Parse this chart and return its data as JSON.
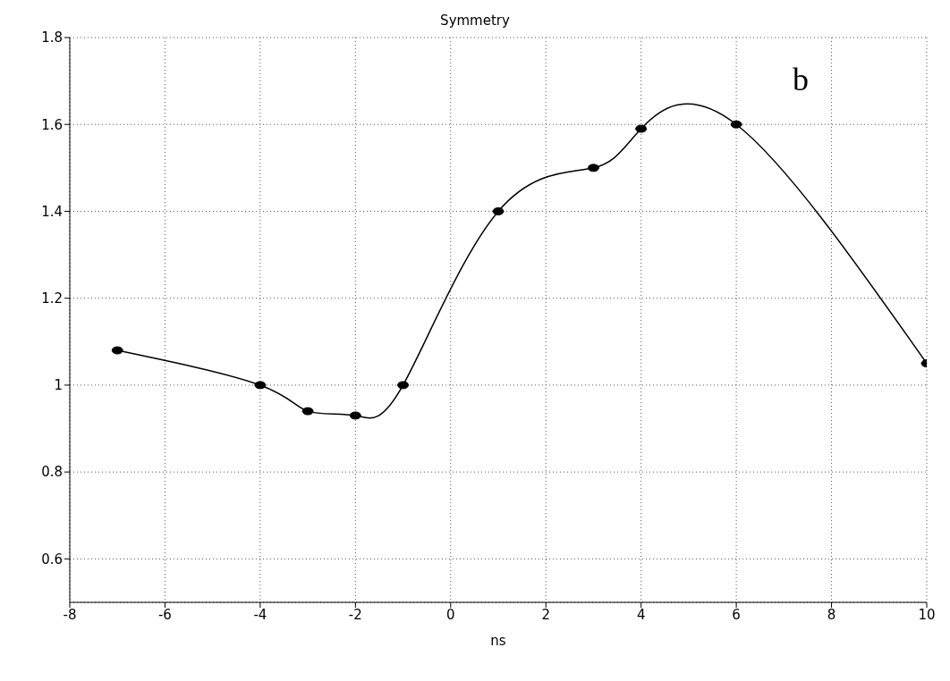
{
  "chart_data": {
    "type": "line",
    "title": "Symmetry",
    "xlabel": "ns",
    "annotations": [
      "b"
    ],
    "x": [
      -7,
      -4,
      -3,
      -2,
      -1,
      1,
      3,
      4,
      6,
      10
    ],
    "series": [
      {
        "color": "#000000",
        "values": [
          1.08,
          1.0,
          0.94,
          0.93,
          1.0,
          1.4,
          1.5,
          1.59,
          1.6,
          1.05
        ]
      }
    ],
    "xlim": [
      -8,
      10
    ],
    "xticks": [
      -8,
      -6,
      -4,
      -2,
      0,
      2,
      4,
      6,
      8,
      10
    ],
    "ylim": [
      0.5,
      1.8
    ],
    "yticks": [
      0.6,
      0.8,
      1,
      1.2,
      1.4,
      1.6,
      1.8
    ],
    "grid": true,
    "marker": "circle",
    "line_style": "solid"
  }
}
